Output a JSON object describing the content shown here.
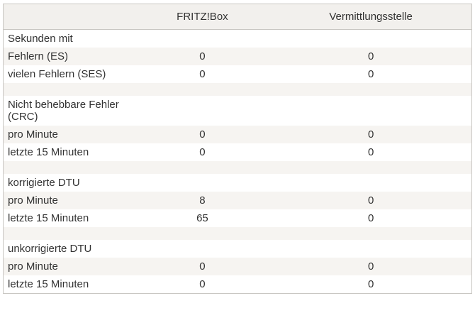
{
  "table": {
    "columns": [
      {
        "label": ""
      },
      {
        "label": "FRITZ!Box"
      },
      {
        "label": "Vermittlungsstelle"
      }
    ],
    "sections": [
      {
        "title": "Sekunden mit",
        "rows": [
          {
            "label": "Fehlern (ES)",
            "fritzbox": "0",
            "vermittlungsstelle": "0"
          },
          {
            "label": "vielen Fehlern (SES)",
            "fritzbox": "0",
            "vermittlungsstelle": "0"
          }
        ]
      },
      {
        "title": "Nicht behebbare Fehler (CRC)",
        "rows": [
          {
            "label": "pro Minute",
            "fritzbox": "0",
            "vermittlungsstelle": "0"
          },
          {
            "label": "letzte 15 Minuten",
            "fritzbox": "0",
            "vermittlungsstelle": "0"
          }
        ]
      },
      {
        "title": "korrigierte DTU",
        "rows": [
          {
            "label": "pro Minute",
            "fritzbox": "8",
            "vermittlungsstelle": "0"
          },
          {
            "label": "letzte 15 Minuten",
            "fritzbox": "65",
            "vermittlungsstelle": "0"
          }
        ]
      },
      {
        "title": "unkorrigierte DTU",
        "rows": [
          {
            "label": "pro Minute",
            "fritzbox": "0",
            "vermittlungsstelle": "0"
          },
          {
            "label": "letzte 15 Minuten",
            "fritzbox": "0",
            "vermittlungsstelle": "0"
          }
        ]
      }
    ],
    "colors": {
      "page_bg": "#ffffff",
      "header_bg": "#f2f0ed",
      "stripe_bg": "#f6f4f1",
      "border": "#c8c6c2",
      "text": "#333333"
    }
  }
}
